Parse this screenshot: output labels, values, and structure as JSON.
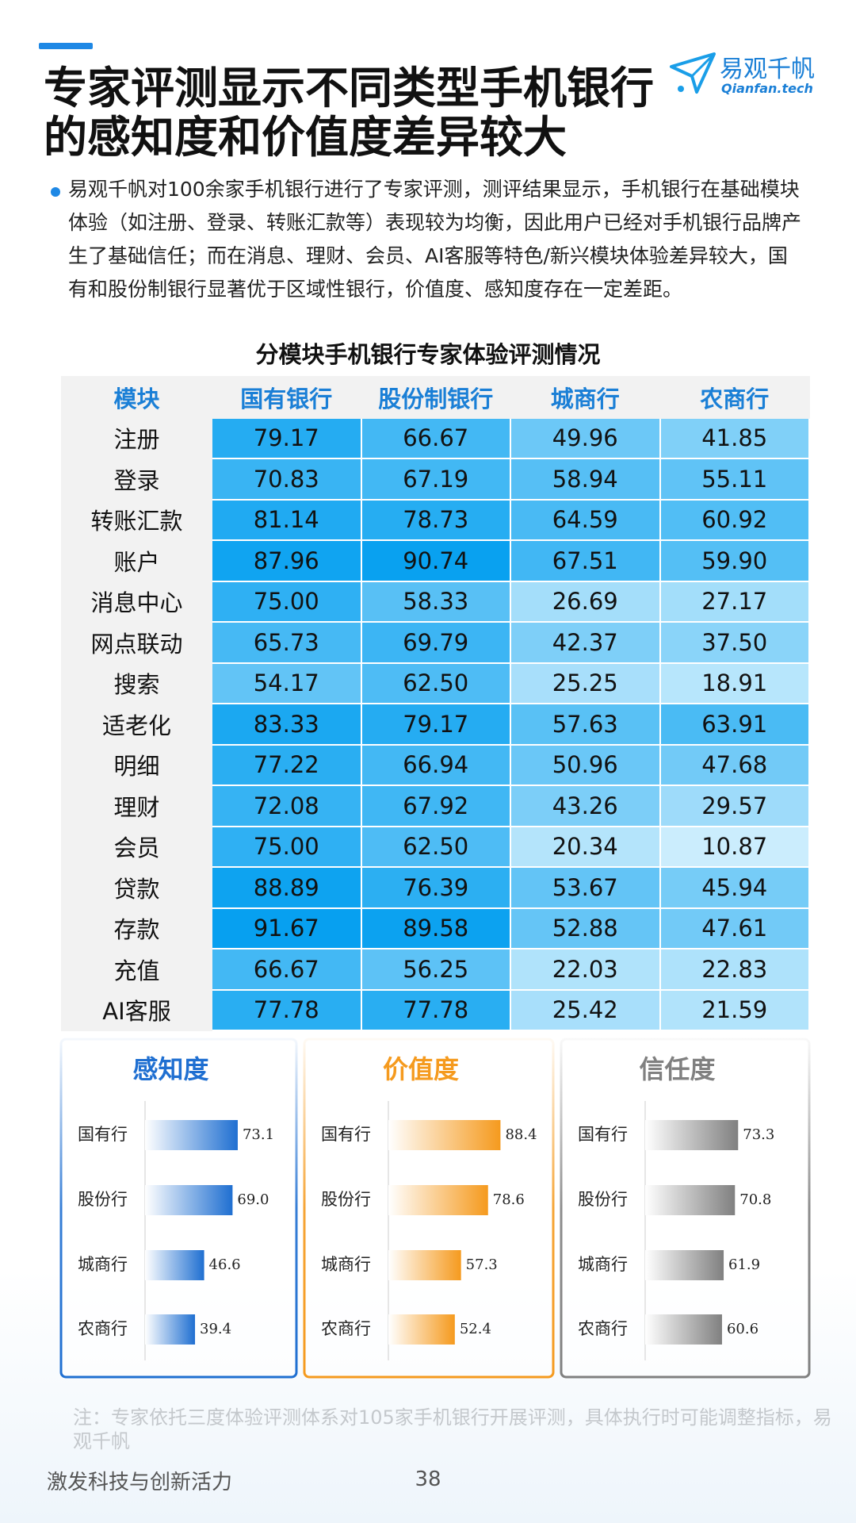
{
  "header": {
    "title_lines": [
      "专家评测显示不同类型手机银行",
      "的感知度和价值度差异较大"
    ],
    "logo_name": "易观千帆",
    "logo_domain": "Qianfan.tech"
  },
  "intro": "易观千帆对100余家手机银行进行了专家评测，测评结果显示，手机银行在基础模块体验（如注册、登录、转账汇款等）表现较为均衡，因此用户已经对手机银行品牌产生了基础信任；而在消息、理财、会员、AI客服等特色/新兴模块体验差异较大，国有和股份制银行显著优于区域性银行，价值度、感知度存在一定差距。",
  "table": {
    "title": "分模块手机银行专家体验评测情况",
    "columns": [
      "模块",
      "国有银行",
      "股份制银行",
      "城商行",
      "农商行"
    ],
    "rows": [
      [
        "注册",
        "79.17",
        "66.67",
        "49.96",
        "41.85"
      ],
      [
        "登录",
        "70.83",
        "67.19",
        "58.94",
        "55.11"
      ],
      [
        "转账汇款",
        "81.14",
        "78.73",
        "64.59",
        "60.92"
      ],
      [
        "账户",
        "87.96",
        "90.74",
        "67.51",
        "59.90"
      ],
      [
        "消息中心",
        "75.00",
        "58.33",
        "26.69",
        "27.17"
      ],
      [
        "网点联动",
        "65.73",
        "69.79",
        "42.37",
        "37.50"
      ],
      [
        "搜索",
        "54.17",
        "62.50",
        "25.25",
        "18.91"
      ],
      [
        "适老化",
        "83.33",
        "79.17",
        "57.63",
        "63.91"
      ],
      [
        "明细",
        "77.22",
        "66.94",
        "50.96",
        "47.68"
      ],
      [
        "理财",
        "72.08",
        "67.92",
        "43.26",
        "29.57"
      ],
      [
        "会员",
        "75.00",
        "62.50",
        "20.34",
        "10.87"
      ],
      [
        "贷款",
        "88.89",
        "76.39",
        "53.67",
        "45.94"
      ],
      [
        "存款",
        "91.67",
        "89.58",
        "52.88",
        "47.61"
      ],
      [
        "充值",
        "66.67",
        "56.25",
        "22.03",
        "22.83"
      ],
      [
        "AI客服",
        "77.78",
        "77.78",
        "25.42",
        "21.59"
      ]
    ]
  },
  "chart_data": [
    {
      "type": "bar",
      "title": "感知度",
      "categories": [
        "国有行",
        "股份行",
        "城商行",
        "农商行"
      ],
      "values": [
        73.1,
        69.0,
        46.6,
        39.4
      ],
      "value_labels": [
        "73.1",
        "69.0",
        "46.6",
        "39.4"
      ],
      "color": "#1f6fd1"
    },
    {
      "type": "bar",
      "title": "价值度",
      "categories": [
        "国有行",
        "股份行",
        "城商行",
        "农商行"
      ],
      "values": [
        88.4,
        78.6,
        57.3,
        52.4
      ],
      "color": "#f59a1e"
    },
    {
      "type": "bar",
      "title": "信任度",
      "categories": [
        "国有行",
        "股份行",
        "城商行",
        "农商行"
      ],
      "values": [
        73.3,
        70.8,
        61.9,
        60.6
      ],
      "color": "#808080"
    }
  ],
  "note": "注：专家依托三度体验评测体系对105家手机银行开展评测，具体执行时可能调整指标，易观千帆",
  "footer": {
    "slogan": "激发科技与创新活力",
    "page": "38"
  }
}
